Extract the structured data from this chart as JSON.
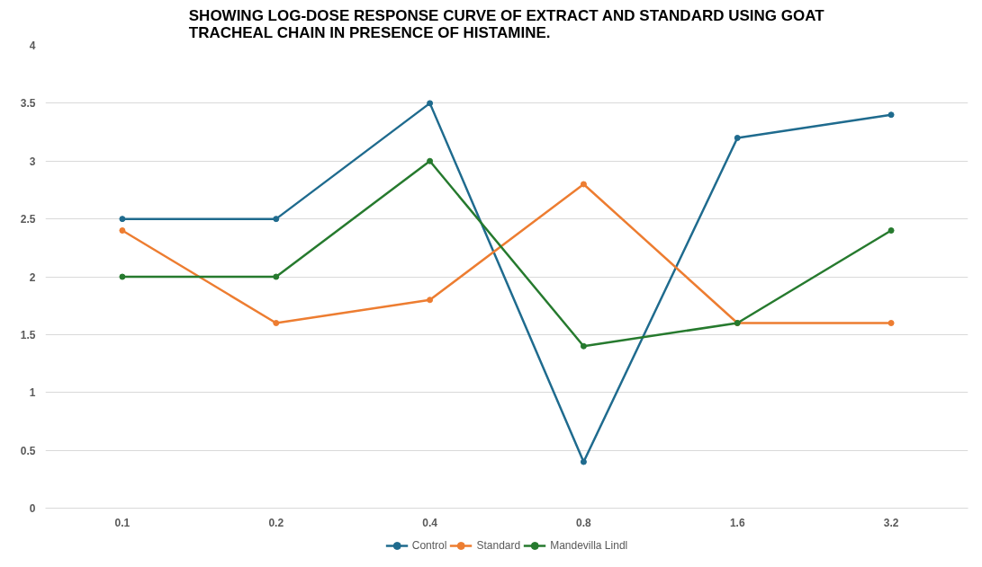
{
  "chart_data": {
    "type": "line",
    "title": "SHOWING LOG-DOSE RESPONSE CURVE OF EXTRACT AND STANDARD USING GOAT TRACHEAL CHAIN IN PRESENCE OF HISTAMINE.",
    "categories": [
      "0.1",
      "0.2",
      "0.4",
      "0.8",
      "1.6",
      "3.2"
    ],
    "series": [
      {
        "name": "Control",
        "color": "#1f6b8e",
        "values": [
          2.5,
          2.5,
          3.5,
          0.4,
          3.2,
          3.4
        ]
      },
      {
        "name": "Standard",
        "color": "#ed7d31",
        "values": [
          2.4,
          1.6,
          1.8,
          2.8,
          1.6,
          1.6
        ]
      },
      {
        "name": "Mandevilla Lindl",
        "color": "#267a2e",
        "values": [
          2.0,
          2.0,
          3.0,
          1.4,
          1.6,
          2.4
        ]
      }
    ],
    "ylim": [
      0,
      4
    ],
    "yticks": [
      0,
      0.5,
      1,
      1.5,
      2,
      2.5,
      3,
      3.5,
      4
    ],
    "grid": "y",
    "legend": "bottom",
    "marker": "circle",
    "line_style": "solid"
  }
}
